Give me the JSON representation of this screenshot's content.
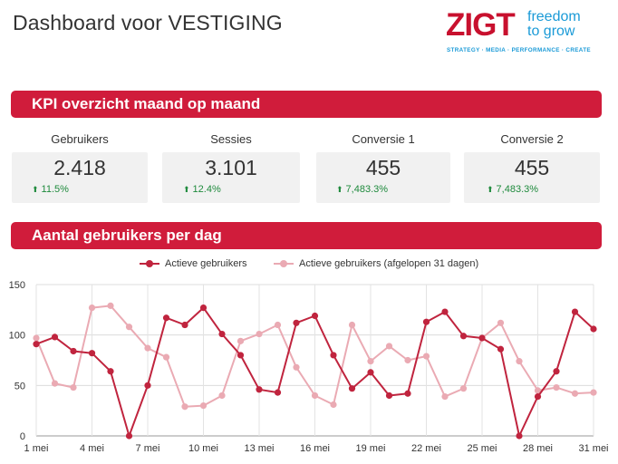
{
  "header": {
    "title": "Dashboard voor VESTIGING",
    "logo": {
      "brand": "ZIGT",
      "slogan_line1": "freedom",
      "slogan_line2": "to grow",
      "tagline": "STRATEGY · MEDIA · PERFORMANCE · CREATE"
    }
  },
  "sections": {
    "kpi_title": "KPI overzicht maand op maand",
    "chart_title": "Aantal gebruikers per dag"
  },
  "kpis": [
    {
      "label": "Gebruikers",
      "value": "2.418",
      "delta": "11.5%"
    },
    {
      "label": "Sessies",
      "value": "3.101",
      "delta": "12.4%"
    },
    {
      "label": "Conversie 1",
      "value": "455",
      "delta": "7,483.3%"
    },
    {
      "label": "Conversie 2",
      "value": "455",
      "delta": "7,483.3%"
    }
  ],
  "colors": {
    "accent": "#d01c3b",
    "series_current": "#c0243e",
    "series_previous": "#eaaab3",
    "delta_positive": "#1e8a3c"
  },
  "chart_data": {
    "type": "line",
    "x": [
      "1 mei",
      "2 mei",
      "3 mei",
      "4 mei",
      "5 mei",
      "6 mei",
      "7 mei",
      "8 mei",
      "9 mei",
      "10 mei",
      "11 mei",
      "12 mei",
      "13 mei",
      "14 mei",
      "15 mei",
      "16 mei",
      "17 mei",
      "18 mei",
      "19 mei",
      "20 mei",
      "21 mei",
      "22 mei",
      "23 mei",
      "24 mei",
      "25 mei",
      "26 mei",
      "27 mei",
      "28 mei",
      "29 mei",
      "30 mei",
      "31 mei"
    ],
    "x_tick_labels": [
      "1 mei",
      "4 mei",
      "7 mei",
      "10 mei",
      "13 mei",
      "16 mei",
      "19 mei",
      "22 mei",
      "25 mei",
      "28 mei",
      "31 mei"
    ],
    "series": [
      {
        "name": "Actieve gebruikers",
        "color": "#c0243e",
        "values": [
          91,
          98,
          84,
          82,
          64,
          0,
          50,
          117,
          110,
          127,
          101,
          80,
          46,
          43,
          112,
          119,
          80,
          47,
          63,
          40,
          42,
          113,
          123,
          99,
          97,
          86,
          0,
          39,
          64,
          123,
          106
        ]
      },
      {
        "name": "Actieve gebruikers (afgelopen 31 dagen)",
        "color": "#eaaab3",
        "values": [
          97,
          52,
          48,
          127,
          129,
          108,
          87,
          78,
          29,
          30,
          40,
          94,
          101,
          110,
          68,
          40,
          31,
          110,
          74,
          89,
          75,
          79,
          39,
          47,
          97,
          112,
          74,
          45,
          48,
          42,
          43
        ]
      }
    ],
    "y_ticks": [
      0,
      50,
      100,
      150
    ],
    "ylim": [
      0,
      150
    ],
    "grid": true,
    "legend_position": "top-center"
  }
}
